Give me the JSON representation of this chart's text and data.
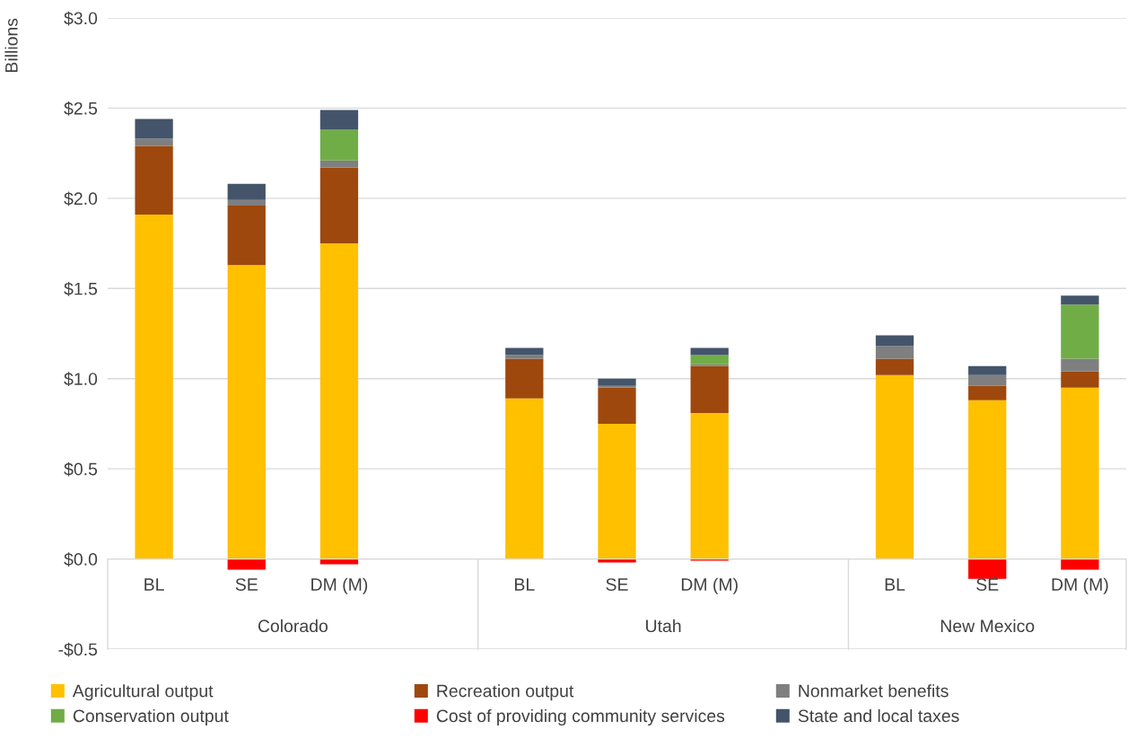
{
  "chart_data": {
    "type": "bar",
    "stacked": true,
    "ylabel": "Billions",
    "categories": [
      "BL",
      "SE",
      "DM (M)",
      null,
      "BL",
      "SE",
      "DM (M)",
      null,
      "BL",
      "SE",
      "DM (M)"
    ],
    "annotations": [
      "Colorado",
      "Utah",
      "New Mexico"
    ],
    "series": [
      {
        "name": "Agricultural output",
        "color": "#ffc000",
        "values": [
          1.91,
          1.63,
          1.75,
          null,
          0.89,
          0.75,
          0.81,
          null,
          1.02,
          0.88,
          0.95
        ]
      },
      {
        "name": "Recreation output",
        "color": "#9e480e",
        "values": [
          0.38,
          0.33,
          0.42,
          null,
          0.22,
          0.2,
          0.26,
          null,
          0.09,
          0.08,
          0.09
        ]
      },
      {
        "name": "Nonmarket benefits",
        "color": "#7f7f7f",
        "values": [
          0.04,
          0.03,
          0.04,
          null,
          0.02,
          0.01,
          0.01,
          null,
          0.07,
          0.06,
          0.07
        ]
      },
      {
        "name": "Conservation output",
        "color": "#70ad47",
        "values": [
          0,
          0,
          0.17,
          null,
          0,
          0,
          0.05,
          null,
          0,
          0,
          0.3
        ]
      },
      {
        "name": "Cost of providing community services",
        "color": "#ff0000",
        "values": [
          0,
          -0.06,
          -0.03,
          null,
          0,
          -0.02,
          -0.01,
          null,
          0,
          -0.11,
          -0.06
        ]
      },
      {
        "name": "State and local taxes",
        "color": "#44546a",
        "values": [
          0.11,
          0.09,
          0.11,
          null,
          0.04,
          0.04,
          0.04,
          null,
          0.06,
          0.05,
          0.05
        ]
      }
    ],
    "ylim": [
      -0.5,
      3.0
    ],
    "yticks": [
      {
        "value": -0.5,
        "label": "-$0.5"
      },
      {
        "value": 0,
        "label": "$0.0"
      },
      {
        "value": 0.5,
        "label": "$0.5"
      },
      {
        "value": 1.0,
        "label": "$1.0"
      },
      {
        "value": 1.5,
        "label": "$1.5"
      },
      {
        "value": 2.0,
        "label": "$2.0"
      },
      {
        "value": 2.5,
        "label": "$2.5"
      },
      {
        "value": 3.0,
        "label": "$3.0"
      }
    ],
    "grid": "y",
    "legend": "bottom"
  }
}
